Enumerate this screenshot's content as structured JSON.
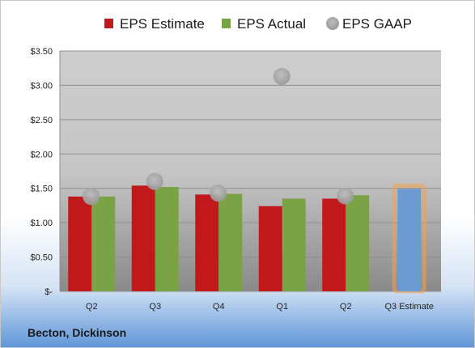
{
  "company": "Becton, Dickinson",
  "chart_data": {
    "type": "bar",
    "categories": [
      "Q2",
      "Q3",
      "Q4",
      "Q1",
      "Q2",
      "Q3 Estimate"
    ],
    "series": [
      {
        "name": "EPS Estimate",
        "values": [
          1.38,
          1.54,
          1.41,
          1.24,
          1.35,
          null
        ],
        "color": "#c0181b"
      },
      {
        "name": "EPS Actual",
        "values": [
          1.38,
          1.52,
          1.42,
          1.35,
          1.4,
          null
        ],
        "color": "#7aa346"
      },
      {
        "name": "EPS GAAP",
        "type": "scatter",
        "values": [
          1.38,
          1.6,
          1.43,
          3.13,
          1.39,
          null
        ],
        "color": "#a8a8a8"
      },
      {
        "name": "",
        "values": [
          null,
          null,
          null,
          null,
          null,
          1.49
        ],
        "color": "#6b9bd1",
        "highlight": "#f5a04a"
      }
    ],
    "ylim": [
      0,
      3.5
    ],
    "yticks": [
      0,
      0.5,
      1.0,
      1.5,
      2.0,
      2.5,
      3.0,
      3.5
    ],
    "ytick_labels": [
      "$-",
      "$0.50",
      "$1.00",
      "$1.50",
      "$2.00",
      "$2.50",
      "$3.00",
      "$3.50"
    ],
    "grid": true,
    "legend": "top"
  }
}
